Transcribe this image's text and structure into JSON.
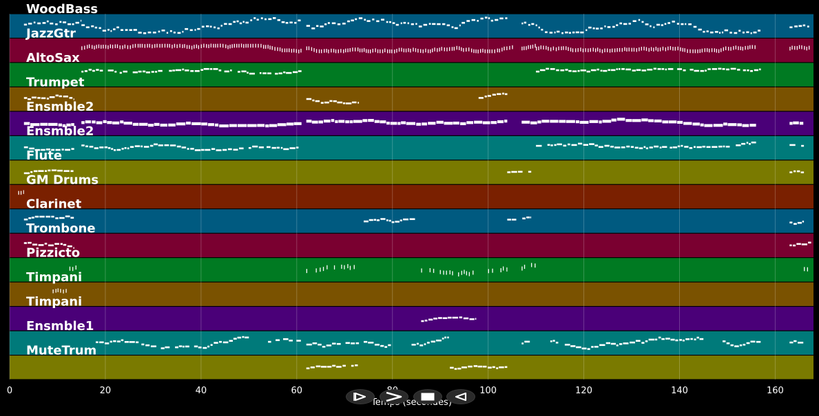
{
  "chart_data": {
    "type": "piano-roll",
    "xlabel": "Temps (secondes)",
    "xlim": [
      0,
      168
    ],
    "x_ticks": [
      0,
      20,
      40,
      60,
      80,
      100,
      120,
      140,
      160
    ],
    "grid": true,
    "tracks": [
      {
        "name": "WoodBass",
        "color": "#005a80",
        "style": "dense",
        "pitch": [
          0.2,
          0.85
        ],
        "segments": [
          [
            3,
            15
          ],
          [
            15,
            61
          ],
          [
            62,
            104
          ],
          [
            107,
            157
          ],
          [
            163,
            167.5
          ]
        ]
      },
      {
        "name": "JazzGtr",
        "color": "#7a0030",
        "style": "ticks",
        "pitch": [
          0.45,
          0.7
        ],
        "segments": [
          [
            15,
            61
          ],
          [
            62,
            105.5
          ],
          [
            107,
            110
          ],
          [
            110,
            156
          ],
          [
            163,
            167.5
          ]
        ]
      },
      {
        "name": "AltoSax",
        "color": "#007a22",
        "style": "phrase",
        "pitch": [
          0.4,
          0.75
        ],
        "segments": [
          [
            15,
            61
          ],
          [
            110,
            157
          ]
        ]
      },
      {
        "name": "Trumpet",
        "color": "#7a5200",
        "style": "phrase",
        "pitch": [
          0.3,
          0.75
        ],
        "segments": [
          [
            3,
            13.5
          ],
          [
            62,
            73
          ],
          [
            98,
            104
          ]
        ]
      },
      {
        "name": "Ensmble2",
        "color": "#4a0078",
        "style": "thick",
        "pitch": [
          0.4,
          0.7
        ],
        "segments": [
          [
            3,
            13.5
          ],
          [
            15,
            61
          ],
          [
            62,
            104
          ],
          [
            107,
            156
          ],
          [
            163,
            166
          ]
        ]
      },
      {
        "name": "Ensmble2",
        "color": "#007a7a",
        "style": "phrase",
        "pitch": [
          0.4,
          0.75
        ],
        "segments": [
          [
            3,
            13.5
          ],
          [
            15,
            61
          ],
          [
            110,
            156
          ],
          [
            163,
            166
          ]
        ]
      },
      {
        "name": "Flute",
        "color": "#7a7a00",
        "style": "phrase",
        "pitch": [
          0.35,
          0.65
        ],
        "segments": [
          [
            3,
            13.5
          ],
          [
            104,
            109
          ],
          [
            163,
            166
          ]
        ]
      },
      {
        "name": "GM Drums",
        "color": "#7a2000",
        "style": "ticks",
        "pitch": [
          0.55,
          0.75
        ],
        "segments": [
          [
            1.8,
            3
          ]
        ]
      },
      {
        "name": "Clarinet",
        "color": "#005a80",
        "style": "phrase",
        "pitch": [
          0.3,
          0.7
        ],
        "segments": [
          [
            3,
            13.5
          ],
          [
            74,
            85
          ],
          [
            104,
            109
          ],
          [
            163,
            166
          ]
        ]
      },
      {
        "name": "Trombone",
        "color": "#7a0030",
        "style": "phrase",
        "pitch": [
          0.3,
          0.75
        ],
        "segments": [
          [
            3,
            13.5
          ],
          [
            163,
            167.5
          ]
        ]
      },
      {
        "name": "Pizzicto",
        "color": "#007a22",
        "style": "pluck",
        "pitch": [
          0.3,
          0.75
        ],
        "segments": [
          [
            12.5,
            14
          ],
          [
            62,
            74
          ],
          [
            86,
            99
          ],
          [
            100,
            104
          ],
          [
            107,
            110
          ],
          [
            166,
            167.5
          ]
        ]
      },
      {
        "name": "Timpani",
        "color": "#7a5200",
        "style": "ticks",
        "pitch": [
          0.55,
          0.75
        ],
        "segments": [
          [
            9,
            12
          ]
        ]
      },
      {
        "name": "Timpani",
        "color": "#4a0078",
        "style": "phrase",
        "pitch": [
          0.3,
          0.55
        ],
        "segments": [
          [
            86,
            97.5
          ]
        ]
      },
      {
        "name": "Ensmble1",
        "color": "#007a7a",
        "style": "phrase",
        "pitch": [
          0.25,
          0.75
        ],
        "segments": [
          [
            18,
            50
          ],
          [
            54,
            61
          ],
          [
            62,
            73
          ],
          [
            74,
            80
          ],
          [
            84,
            92
          ],
          [
            107,
            109
          ],
          [
            113,
            145
          ],
          [
            149,
            157
          ],
          [
            163,
            166
          ]
        ]
      },
      {
        "name": "MuteTrum",
        "color": "#7a7a00",
        "style": "phrase",
        "pitch": [
          0.3,
          0.6
        ],
        "segments": [
          [
            62,
            73
          ],
          [
            92,
            104
          ]
        ]
      }
    ]
  },
  "toolbar": {
    "buttons": [
      {
        "name": "rewind",
        "icon": "play-outline-icon"
      },
      {
        "name": "forward",
        "icon": "chevron-right-icon"
      },
      {
        "name": "stop",
        "icon": "stop-icon"
      },
      {
        "name": "back",
        "icon": "triangle-left-icon"
      }
    ]
  }
}
